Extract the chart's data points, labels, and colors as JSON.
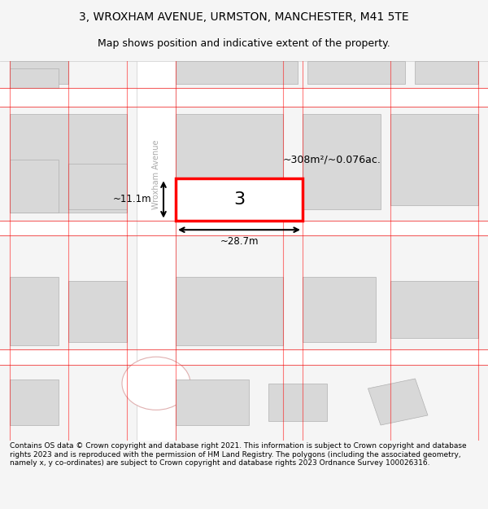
{
  "title_line1": "3, WROXHAM AVENUE, URMSTON, MANCHESTER, M41 5TE",
  "title_line2": "Map shows position and indicative extent of the property.",
  "footer_text": "Contains OS data © Crown copyright and database right 2021. This information is subject to Crown copyright and database rights 2023 and is reproduced with the permission of HM Land Registry. The polygons (including the associated geometry, namely x, y co-ordinates) are subject to Crown copyright and database rights 2023 Ordnance Survey 100026316.",
  "bg_color": "#f5f5f5",
  "map_bg": "#f0f0f0",
  "building_color": "#d8d8d8",
  "building_edge": "#b0b0b0",
  "road_color": "#ffffff",
  "road_outline": "#c0c0c0",
  "highlight_color": "#ff0000",
  "highlight_fill": "#ffffff",
  "property_label": "3",
  "area_label": "~308m²/~0.076ac.",
  "width_label": "~28.7m",
  "height_label": "~11.1m",
  "street_label": "Wroxham Avenue"
}
